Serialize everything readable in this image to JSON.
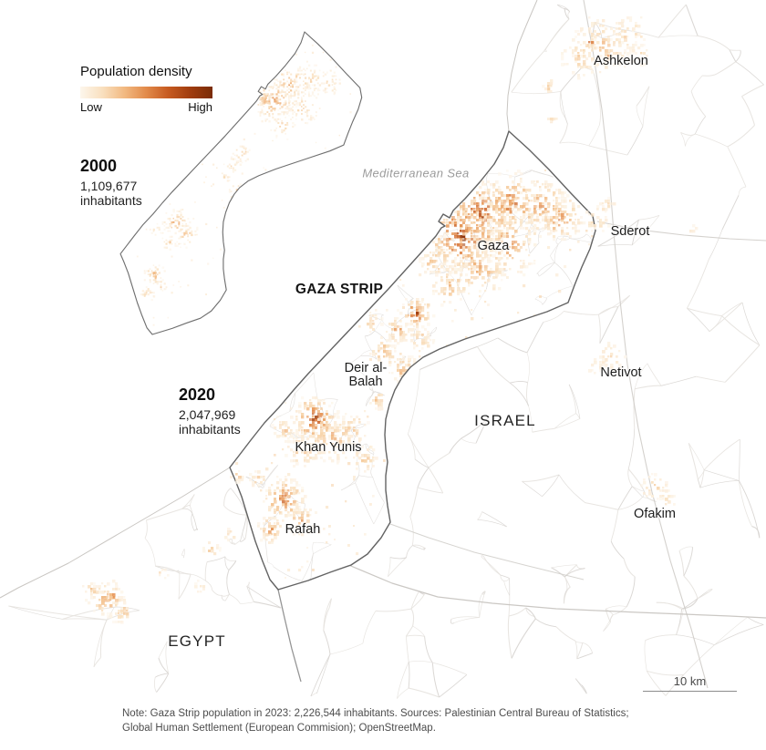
{
  "legend": {
    "title": "Population density",
    "low_label": "Low",
    "high_label": "High",
    "ramp_colors": [
      "#fdf6ec",
      "#f9e0bf",
      "#f2b981",
      "#e28a4a",
      "#c65a20",
      "#a03c0e",
      "#7a2c06"
    ]
  },
  "stats": [
    {
      "year": "2000",
      "population": "1,109,677",
      "unit": "inhabitants"
    },
    {
      "year": "2020",
      "population": "2,047,969",
      "unit": "inhabitants"
    }
  ],
  "labels": {
    "sea": "Mediterranean Sea",
    "strip": "GAZA STRIP",
    "israel": "ISRAEL",
    "egypt": "EGYPT"
  },
  "cities": {
    "gaza": "Gaza",
    "deir_al_balah": "Deir al-Balah",
    "khan_yunis": "Khan Yunis",
    "rafah": "Rafah",
    "ashkelon": "Ashkelon",
    "sderot": "Sderot",
    "netivot": "Netivot",
    "ofakim": "Ofakim"
  },
  "scale_bar": {
    "label": "10 km"
  },
  "note": "Note: Gaza Strip population in 2023: 2,226,544 inhabitants. Sources: Palestinian Central Bureau of Statistics; Global Human Settlement (European Commision); OpenStreetMap."
}
